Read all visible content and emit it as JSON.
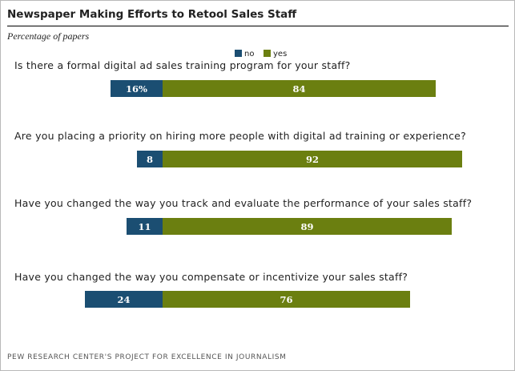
{
  "title": "Newspaper Making Efforts to Retool Sales Staff",
  "subtitle": "Percentage of papers",
  "footer": "PEW RESEARCH CENTER'S PROJECT FOR EXCELLENCE IN JOURNALISM",
  "colors": {
    "no": "#1b4e72",
    "yes": "#6b7f10"
  },
  "chart_data": {
    "type": "bar",
    "orientation": "horizontal",
    "stacked": true,
    "diverging": true,
    "units": "percent",
    "legend": {
      "placement": "top-center",
      "entries": [
        "no",
        "yes"
      ]
    },
    "categories": [
      "Is there a formal digital ad sales training program for your staff?",
      "Are you placing a priority on hiring more people with digital ad training or experience?",
      "Have you changed the way you track and evaluate the performance of your sales staff?",
      "Have you changed the way you compensate or incentivize your sales staff?"
    ],
    "series": [
      {
        "name": "no",
        "values": [
          16,
          8,
          11,
          24
        ],
        "labels": [
          "16%",
          "8",
          "11",
          "24"
        ]
      },
      {
        "name": "yes",
        "values": [
          84,
          92,
          89,
          76
        ],
        "labels": [
          "84",
          "92",
          "89",
          "76"
        ]
      }
    ]
  }
}
